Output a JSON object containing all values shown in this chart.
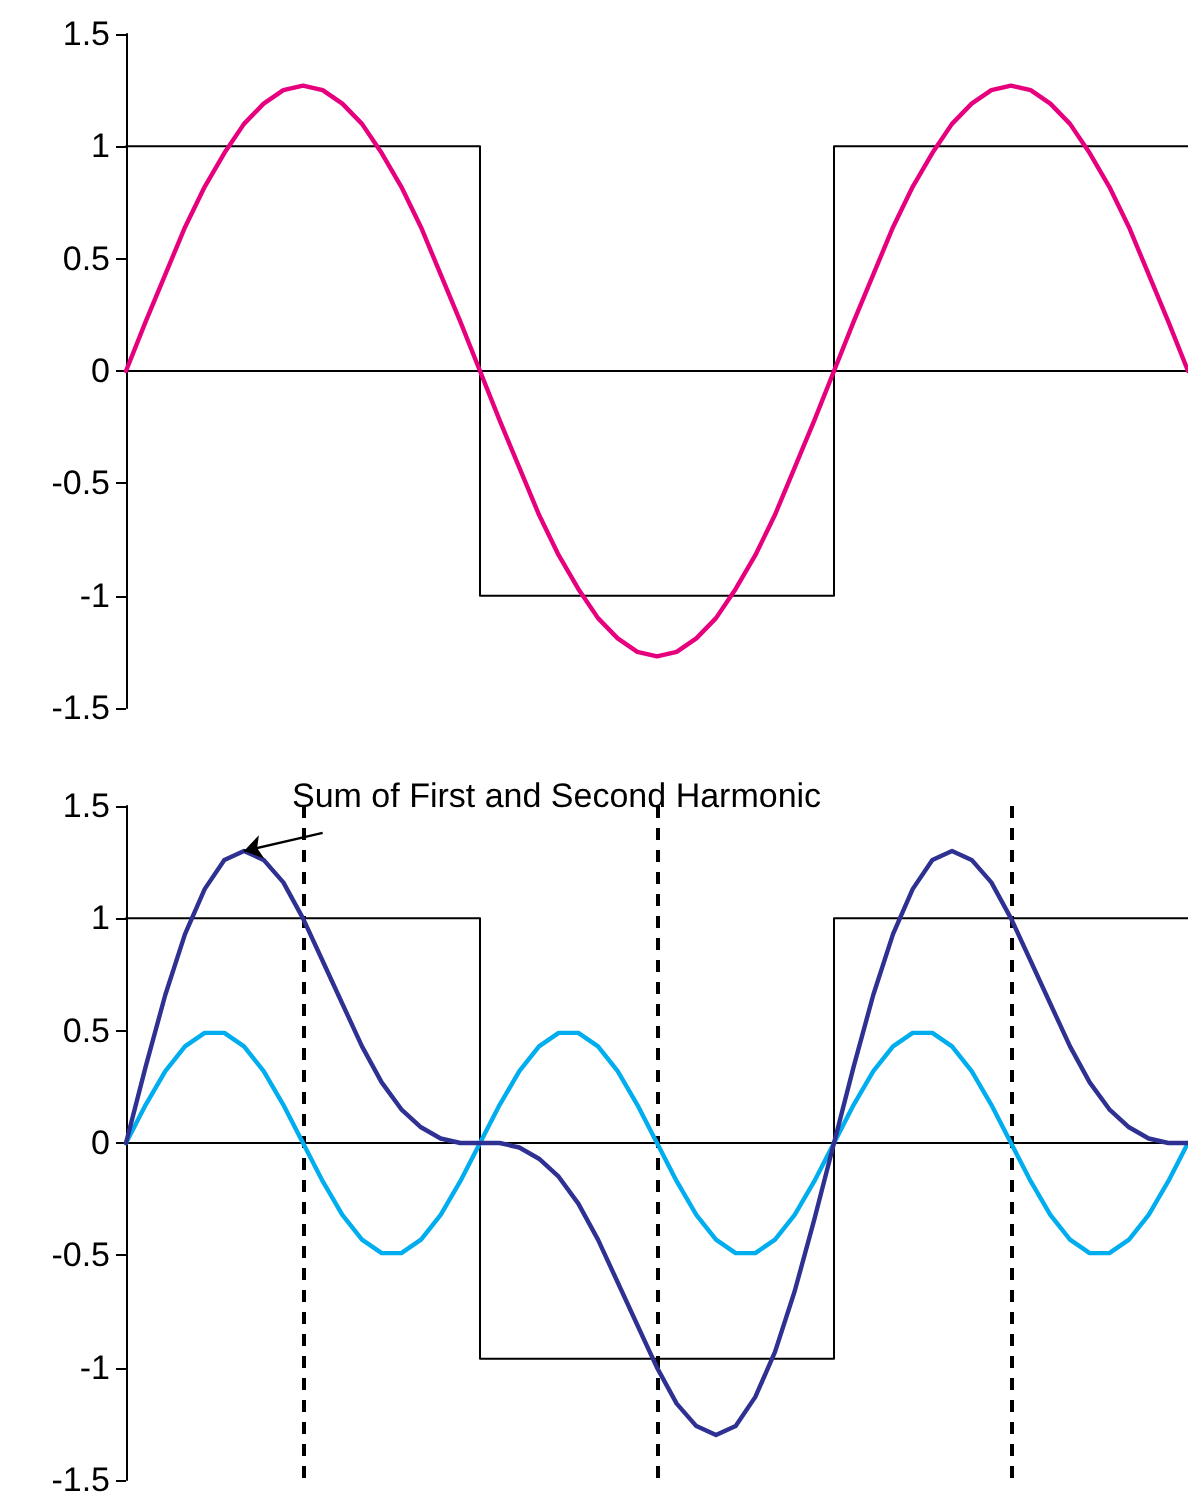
{
  "chart_data": [
    {
      "type": "line",
      "categories": [
        null,
        null,
        null,
        null,
        null,
        null,
        null,
        null,
        null,
        null,
        null,
        null,
        null,
        null,
        null,
        null,
        null,
        null,
        null,
        null,
        null,
        null,
        null,
        null,
        null,
        null,
        null,
        null,
        null,
        null,
        null,
        null,
        null,
        null,
        null,
        null,
        null,
        null,
        null,
        null,
        null,
        null,
        null,
        null,
        null,
        null,
        null,
        null,
        null,
        null,
        null,
        null,
        null,
        null,
        null
      ],
      "series": [
        {
          "type": "step",
          "color": "#000000",
          "values": [
            1,
            1,
            1,
            1,
            1,
            1,
            1,
            1,
            1,
            1,
            1,
            1,
            1,
            1,
            1,
            1,
            1,
            1,
            -1,
            -1,
            -1,
            -1,
            -1,
            -1,
            -1,
            -1,
            -1,
            -1,
            -1,
            -1,
            -1,
            -1,
            -1,
            -1,
            -1,
            -1,
            1,
            1,
            1,
            1,
            1,
            1,
            1,
            1,
            1,
            1,
            1,
            1,
            1,
            1,
            1,
            1,
            1,
            1,
            1
          ]
        },
        {
          "color": "#e6007e",
          "values": [
            0,
            0.22,
            0.43,
            0.64,
            0.82,
            0.97,
            1.1,
            1.19,
            1.25,
            1.27,
            1.25,
            1.19,
            1.1,
            0.97,
            0.82,
            0.64,
            0.43,
            0.22,
            0,
            -0.22,
            -0.43,
            -0.64,
            -0.82,
            -0.97,
            -1.1,
            -1.19,
            -1.25,
            -1.27,
            -1.25,
            -1.19,
            -1.1,
            -0.97,
            -0.82,
            -0.64,
            -0.43,
            -0.22,
            0,
            0.22,
            0.43,
            0.64,
            0.82,
            0.97,
            1.1,
            1.19,
            1.25,
            1.27,
            1.25,
            1.19,
            1.1,
            0.97,
            0.82,
            0.64,
            0.43,
            0.22,
            0
          ]
        }
      ],
      "ylim": [
        -1.5,
        1.5
      ],
      "yticks": [
        -1.5,
        -1,
        -0.5,
        0,
        0.5,
        1,
        1.5
      ],
      "tick_labels": "y",
      "marker": "none"
    },
    {
      "type": "line",
      "categories": [
        null,
        null,
        null,
        null,
        null,
        null,
        null,
        null,
        null,
        null,
        null,
        null,
        null,
        null,
        null,
        null,
        null,
        null,
        null,
        null,
        null,
        null,
        null,
        null,
        null,
        null,
        null,
        null,
        null,
        null,
        null,
        null,
        null,
        null,
        null,
        null,
        null,
        null,
        null,
        null,
        null,
        null,
        null,
        null,
        null,
        null,
        null,
        null,
        null,
        null,
        null,
        null,
        null,
        null,
        null
      ],
      "series": [
        {
          "type": "step",
          "color": "#000000",
          "values": [
            1,
            1,
            1,
            1,
            1,
            1,
            1,
            1,
            1,
            1,
            1,
            1,
            1,
            1,
            1,
            1,
            1,
            1,
            -0.96,
            -0.96,
            -0.96,
            -0.96,
            -0.96,
            -0.96,
            -0.96,
            -0.96,
            -0.96,
            -0.96,
            -0.96,
            -0.96,
            -0.96,
            -0.96,
            -0.96,
            -0.96,
            -0.96,
            -0.96,
            1,
            1,
            1,
            1,
            1,
            1,
            1,
            1,
            1,
            1,
            1,
            1,
            1,
            1,
            1,
            1,
            1,
            1,
            1
          ]
        },
        {
          "color": "#00adef",
          "values": [
            0,
            0.17,
            0.32,
            0.43,
            0.49,
            0.49,
            0.43,
            0.32,
            0.17,
            0,
            -0.17,
            -0.32,
            -0.43,
            -0.49,
            -0.49,
            -0.43,
            -0.32,
            -0.17,
            0,
            0.17,
            0.32,
            0.43,
            0.49,
            0.49,
            0.43,
            0.32,
            0.17,
            0,
            -0.17,
            -0.32,
            -0.43,
            -0.49,
            -0.49,
            -0.43,
            -0.32,
            -0.17,
            0,
            0.17,
            0.32,
            0.43,
            0.49,
            0.49,
            0.43,
            0.32,
            0.17,
            0,
            -0.17,
            -0.32,
            -0.43,
            -0.49,
            -0.49,
            -0.43,
            -0.32,
            -0.17,
            0
          ]
        },
        {
          "color": "#2e3192",
          "values": [
            0,
            0.34,
            0.66,
            0.93,
            1.13,
            1.26,
            1.3,
            1.26,
            1.16,
            1,
            0.81,
            0.62,
            0.43,
            0.27,
            0.15,
            0.07,
            0.02,
            0,
            0,
            0,
            -0.02,
            -0.07,
            -0.15,
            -0.27,
            -0.43,
            -0.62,
            -0.81,
            -1,
            -1.16,
            -1.26,
            -1.3,
            -1.26,
            -1.13,
            -0.93,
            -0.66,
            -0.34,
            0,
            0.34,
            0.66,
            0.93,
            1.13,
            1.26,
            1.3,
            1.26,
            1.16,
            1,
            0.81,
            0.62,
            0.43,
            0.27,
            0.15,
            0.07,
            0.02,
            0,
            0
          ]
        }
      ],
      "ylim": [
        -1.5,
        1.5
      ],
      "yticks": [
        -1.5,
        -1,
        -0.5,
        0,
        0.5,
        1,
        1.5
      ],
      "tick_labels": "y",
      "marker": "none",
      "grid": "x",
      "annotations": [
        "Sum of First and Second Harmonic"
      ]
    }
  ]
}
